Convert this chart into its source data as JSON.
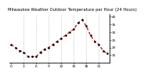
{
  "title": "Milwaukee Weather Outdoor Temperature per Hour (24 Hours)",
  "hours": [
    0,
    1,
    2,
    3,
    4,
    5,
    6,
    7,
    8,
    9,
    10,
    11,
    12,
    13,
    14,
    15,
    16,
    17,
    18,
    19,
    20,
    21,
    22,
    23
  ],
  "temps": [
    22,
    20,
    18,
    17,
    14,
    14,
    14,
    17,
    19,
    20,
    22,
    24,
    26,
    28,
    30,
    32,
    36,
    38,
    34,
    28,
    24,
    22,
    18,
    16
  ],
  "line_color": "#cc0000",
  "marker_color": "#000000",
  "grid_color": "#aaaaaa",
  "bg_color": "#ffffff",
  "ylim": [
    10,
    42
  ],
  "yticks": [
    15,
    20,
    25,
    30,
    35,
    40
  ],
  "vgrid_hours": [
    3,
    6,
    9,
    12,
    15,
    18,
    21
  ],
  "title_fontsize": 3.8,
  "tick_fontsize": 3.2,
  "linewidth": 0.9,
  "markersize": 1.8
}
